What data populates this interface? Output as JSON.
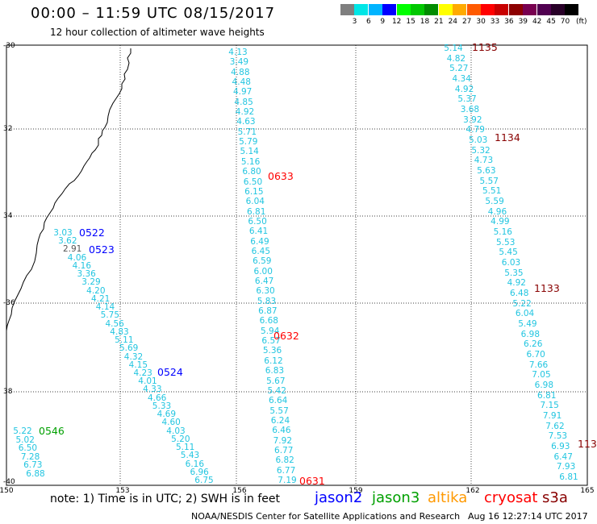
{
  "header": {
    "title": "00:00 – 11:59 UTC 08/15/2017",
    "subtitle": "12 hour collection of altimeter wave heights"
  },
  "scale": {
    "colors": [
      "#7f7f7f",
      "#00e6e6",
      "#00b4ff",
      "#0000ff",
      "#00ff00",
      "#00c800",
      "#008c00",
      "#ffff00",
      "#ffaa00",
      "#ff5a00",
      "#ff0000",
      "#c80000",
      "#8c0000",
      "#780050",
      "#500050",
      "#280028",
      "#000000"
    ],
    "labels": [
      "3",
      "6",
      "9",
      "12",
      "15",
      "18",
      "21",
      "24",
      "27",
      "30",
      "33",
      "36",
      "39",
      "42",
      "45",
      "70"
    ],
    "unit": "(ft)"
  },
  "axes": {
    "y_labels": [
      "-30",
      "32",
      "34",
      "-36",
      "38",
      "-40"
    ],
    "x_labels": [
      "150",
      "153",
      "156",
      "159",
      "162",
      "165"
    ]
  },
  "legend": [
    {
      "name": "jason2",
      "color": "#0000ff"
    },
    {
      "name": "jason3",
      "color": "#00a000"
    },
    {
      "name": "altika",
      "color": "#ff9900"
    },
    {
      "name": "cryosat",
      "color": "#ff0000"
    },
    {
      "name": "s3a",
      "color": "#880000"
    }
  ],
  "note": "note: 1) Time is in UTC; 2) SWH is in feet",
  "footer": {
    "left": "NOAA/NESDIS Center for Satellite Applications and Research",
    "right": "Aug 16 12:27:14 UTC 2017"
  },
  "tracks": {
    "t1": [
      "4.13",
      "3.49",
      "4.88",
      "4.48",
      "4.97",
      "4.85",
      "4.92",
      "4.63",
      "5.71",
      "5.79",
      "5.14",
      "5.16",
      "6.80",
      "6.50",
      "6.15",
      "6.04",
      "6.81",
      "6.50",
      "6.41",
      "6.49",
      "6.45",
      "6.59",
      "6.00",
      "6.47",
      "6.30",
      "5.83",
      "6.87",
      "6.68",
      "5.94",
      "6.57",
      "5.36",
      "6.12",
      "6.83",
      "5.67",
      "5.42",
      "6.64",
      "5.57",
      "6.24",
      "6.46",
      "7.92",
      "6.77",
      "6.82",
      "6.77",
      "7.19"
    ],
    "t2": [
      "5.14",
      "4.82",
      "5.27",
      "4.34",
      "4.92",
      "5.37",
      "3.68",
      "3.92",
      "4.79",
      "5.03",
      "5.32",
      "4.73",
      "5.63",
      "5.57",
      "5.51",
      "5.59",
      "4.96",
      "4.99",
      "5.16",
      "5.53",
      "5.45",
      "6.03",
      "5.35",
      "4.92",
      "6.48",
      "5.22",
      "6.04",
      "5.49",
      "6.98",
      "6.26",
      "6.70",
      "7.66",
      "7.05",
      "6.98",
      "6.81",
      "7.15",
      "7.91",
      "7.62",
      "7.53",
      "6.93",
      "6.47",
      "7.93",
      "6.81"
    ],
    "t3": [
      "3.03",
      "3.62",
      "2.91",
      "4.06",
      "4.16",
      "3.36",
      "3.29",
      "4.20",
      "4.21",
      "4.14",
      "5.75",
      "4.56",
      "4.83",
      "5.11",
      "5.69",
      "4.32",
      "4.15",
      "4.23",
      "4.01",
      "4.33",
      "4.66",
      "5.33",
      "4.69",
      "4.60",
      "4.03",
      "5.20",
      "5.11",
      "5.43",
      "6.16",
      "6.96",
      "6.75"
    ],
    "t4": [
      "5.22",
      "5.02",
      "6.50",
      "7.28",
      "6.73",
      "6.88"
    ]
  },
  "passes": [
    {
      "label": "1135",
      "sat": "s3a"
    },
    {
      "label": "1134",
      "sat": "s3a"
    },
    {
      "label": "1133",
      "sat": "s3a"
    },
    {
      "label": "113",
      "sat": "s3a"
    },
    {
      "label": "0633",
      "sat": "cryosat"
    },
    {
      "label": "0632",
      "sat": "cryosat"
    },
    {
      "label": "0631",
      "sat": "cryosat"
    },
    {
      "label": "0522",
      "sat": "jason2"
    },
    {
      "label": "0523",
      "sat": "jason2"
    },
    {
      "label": "0524",
      "sat": "jason2"
    },
    {
      "label": "0546",
      "sat": "jason3"
    }
  ]
}
